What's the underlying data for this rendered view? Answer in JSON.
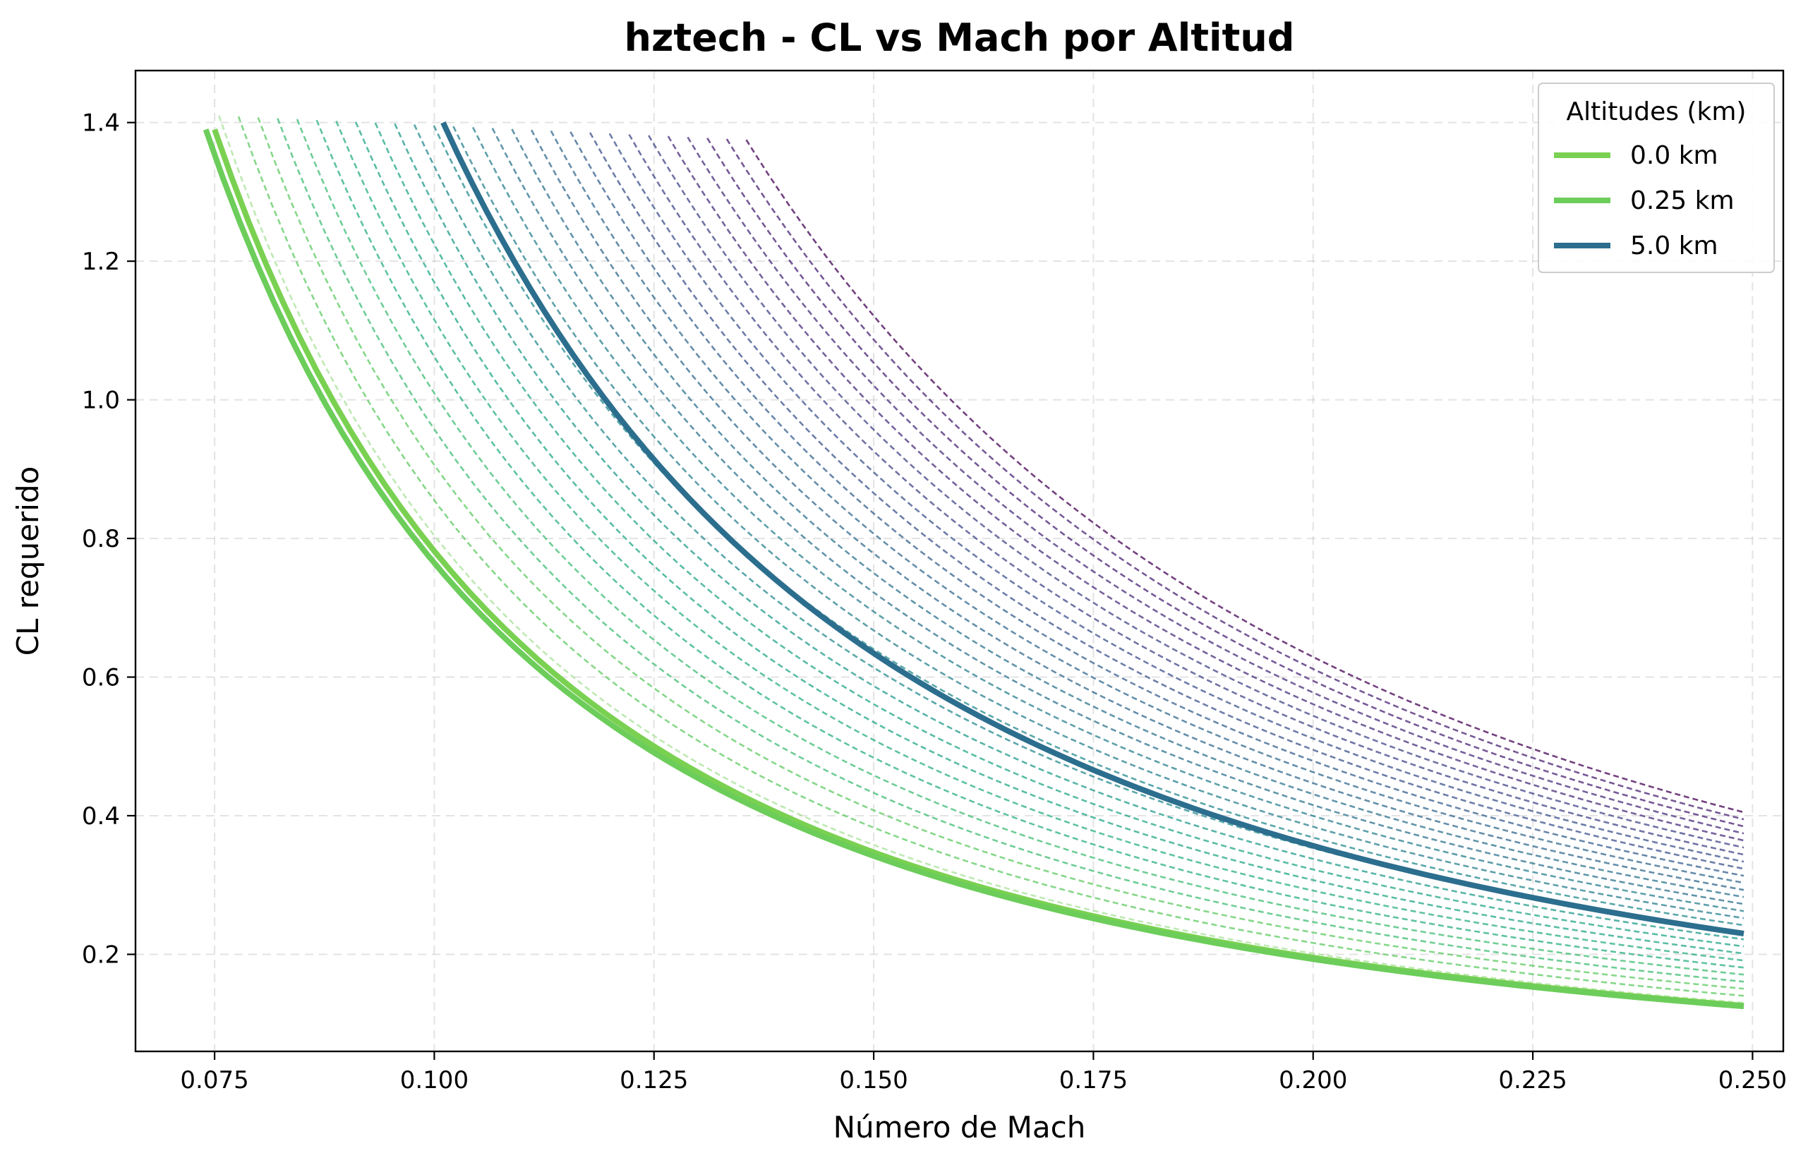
{
  "chart_data": {
    "type": "line",
    "title": "hztech - CL vs Mach por Altitud",
    "xlabel": "Número de Mach",
    "ylabel": "CL requerido",
    "xlim": [
      0.066,
      0.2535
    ],
    "ylim": [
      0.06,
      1.475
    ],
    "xticks": [
      "0.075",
      "0.100",
      "0.125",
      "0.150",
      "0.175",
      "0.200",
      "0.225",
      "0.250"
    ],
    "yticks": [
      "0.2",
      "0.4",
      "0.6",
      "0.8",
      "1.0",
      "1.2",
      "1.4"
    ],
    "grid": true,
    "legend_position": "top-right",
    "legend_title": "Altitudes (km)",
    "legend_entries": [
      {
        "label": "0.0 km",
        "color": "#7ad151"
      },
      {
        "label": "0.25 km",
        "color": "#6ccd5a"
      },
      {
        "label": "5.0 km",
        "color": "#2c6e8e"
      }
    ],
    "highlighted_series": [
      {
        "altitude_km": 0.0,
        "color": "#7ad151",
        "x_start": 0.075,
        "x_end": 0.249,
        "cl_at_start": 1.39,
        "cl_at_end": 0.126
      },
      {
        "altitude_km": 0.25,
        "color": "#6ccd5a",
        "x_start": 0.074,
        "x_end": 0.249,
        "cl_at_start": 1.39,
        "cl_at_end": 0.125
      },
      {
        "altitude_km": 5.0,
        "color": "#2c6e8e",
        "x_start": 0.101,
        "x_end": 0.249,
        "cl_at_start": 1.4,
        "cl_at_end": 0.23
      }
    ],
    "background_series": {
      "style": "dashed",
      "count": 28,
      "x_end": 0.249,
      "start_x_range": [
        0.0755,
        0.1355
      ],
      "start_cl_range": [
        1.41,
        1.375
      ],
      "end_cl_range": [
        0.13,
        0.405
      ],
      "colors": [
        "#a8e29a",
        "#5ec962",
        "#3fbc73",
        "#28ae80",
        "#21a585",
        "#1f9a8a",
        "#23898e",
        "#277f8e",
        "#2c728e",
        "#31688e",
        "#355f8d",
        "#3b528b",
        "#414487",
        "#472d7b",
        "#482173",
        "#440154"
      ]
    }
  }
}
